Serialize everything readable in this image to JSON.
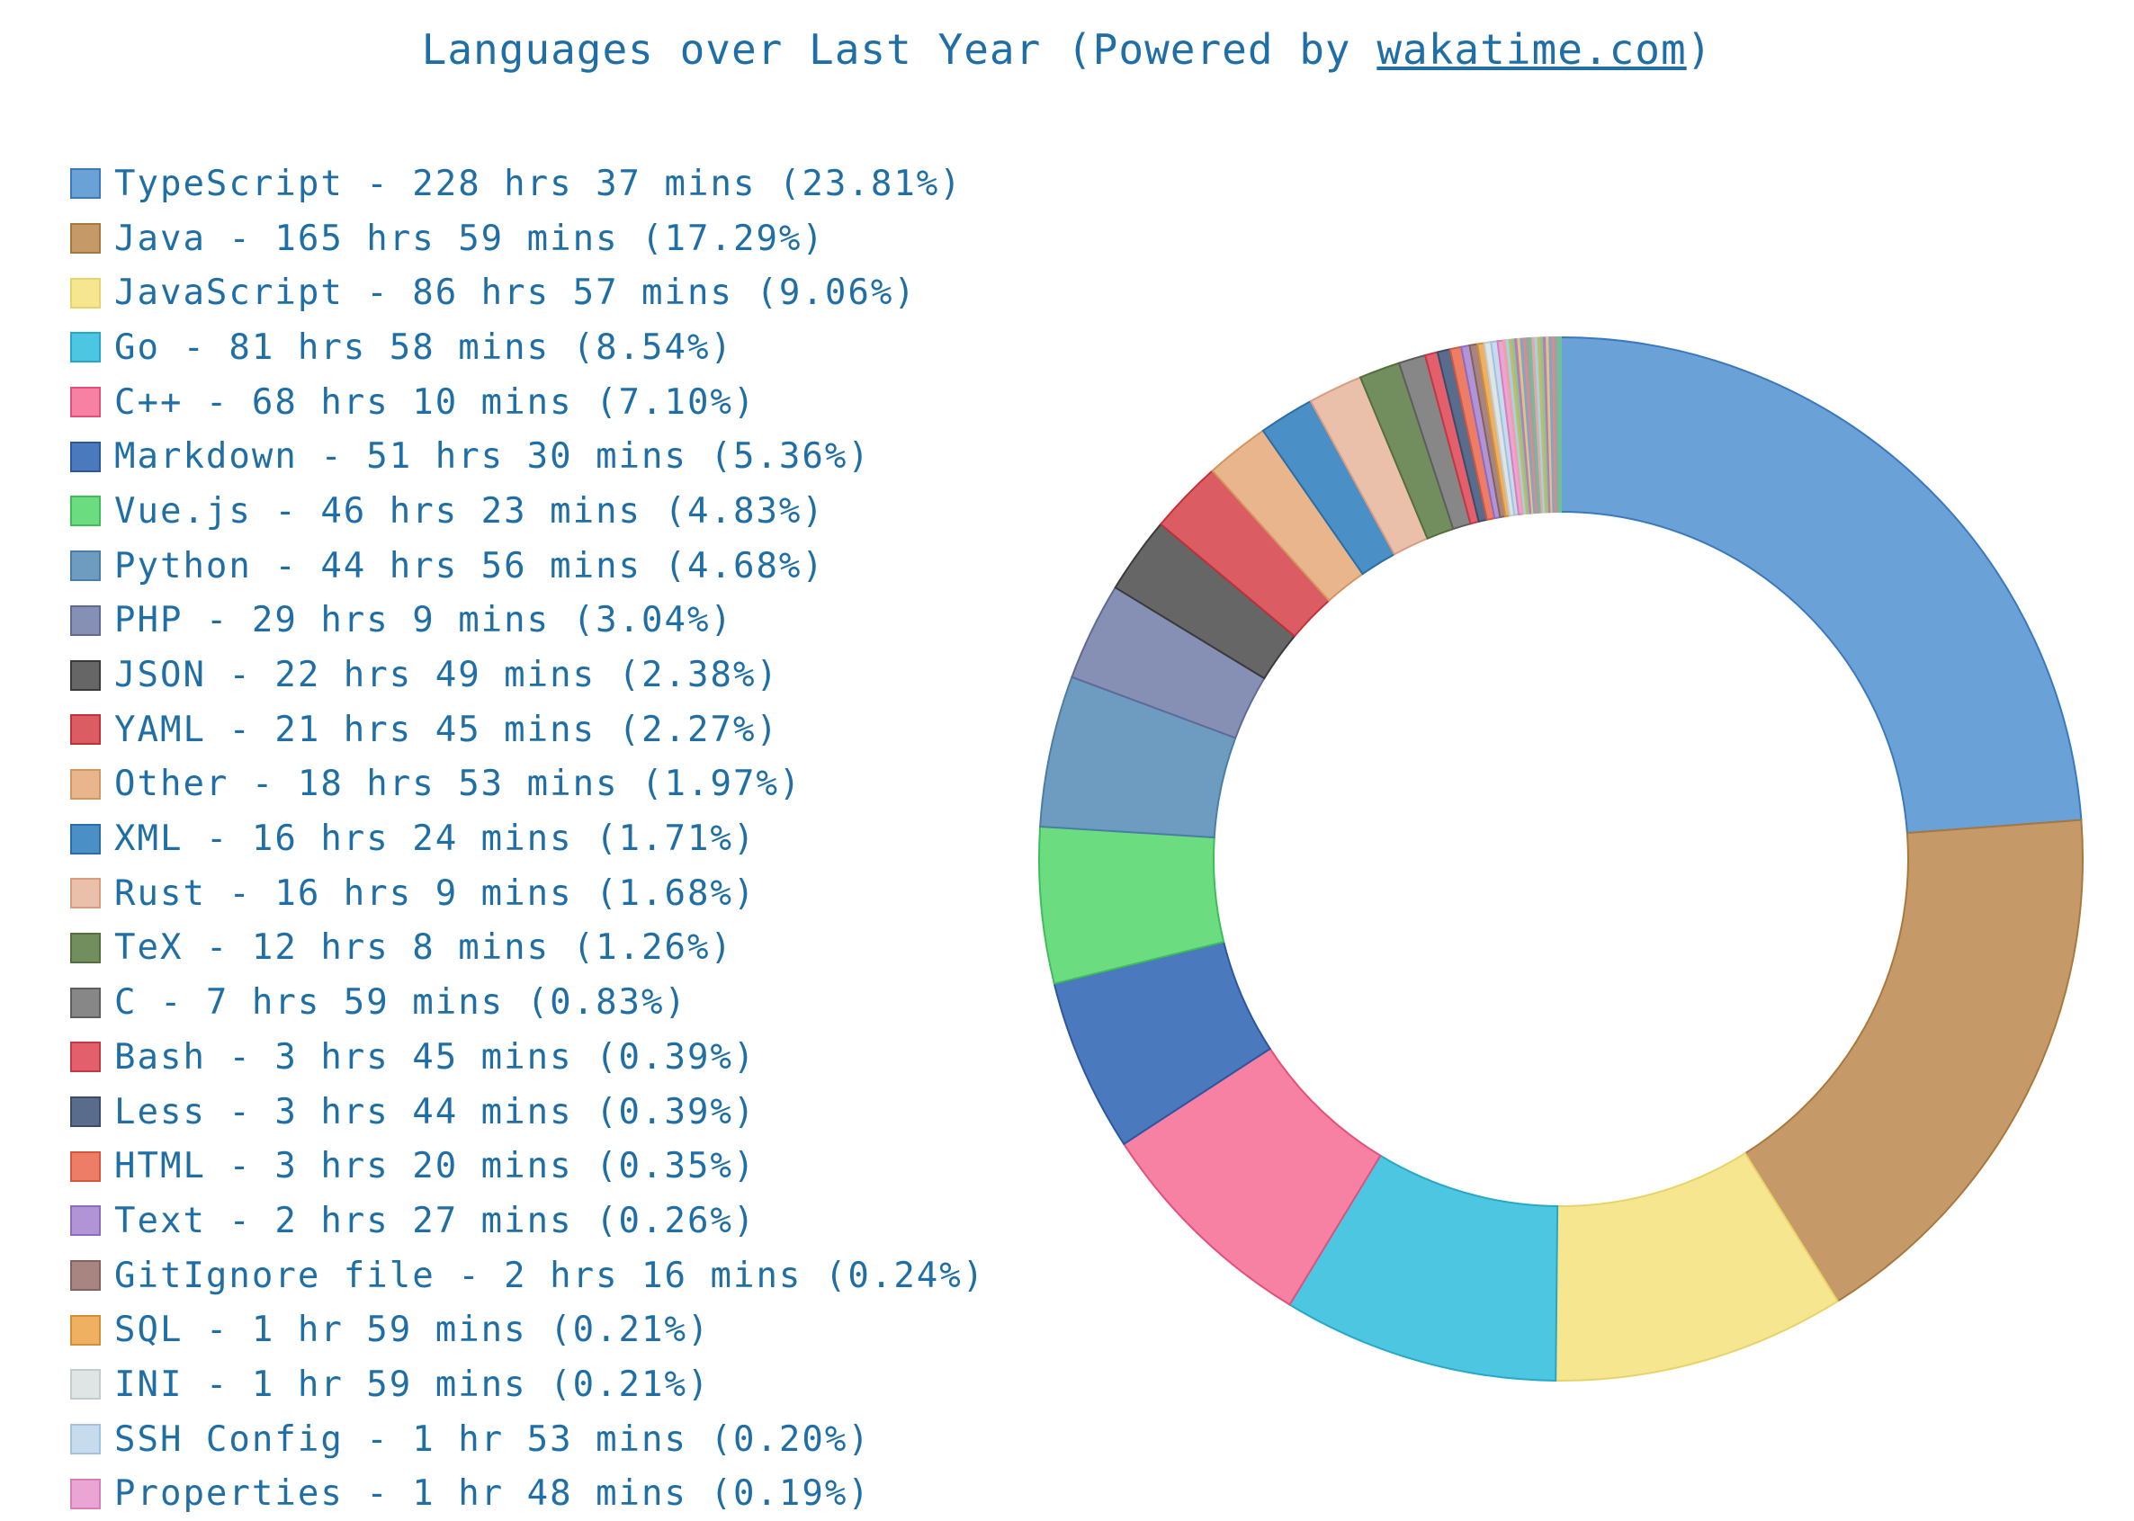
{
  "title_prefix": "Languages over Last Year (Powered by ",
  "title_link": "wakatime.com",
  "title_suffix": ")",
  "chart_data": {
    "type": "pie",
    "title": "Languages over Last Year (Powered by wakatime.com)",
    "unit": "percent",
    "legend_position": "left",
    "series": [
      {
        "name": "TypeScript",
        "label": "TypeScript - 228 hrs 37 mins (23.81%)",
        "value": 23.81,
        "color": "#6aa1d6",
        "stroke": "#3a78bf"
      },
      {
        "name": "Java",
        "label": "Java - 165 hrs 59 mins (17.29%)",
        "value": 17.29,
        "color": "#c69a68",
        "stroke": "#a8783c"
      },
      {
        "name": "JavaScript",
        "label": "JavaScript - 86 hrs 57 mins (9.06%)",
        "value": 9.06,
        "color": "#f5e68f",
        "stroke": "#e8d36a"
      },
      {
        "name": "Go",
        "label": "Go - 81 hrs 58 mins (8.54%)",
        "value": 8.54,
        "color": "#4dc6e1",
        "stroke": "#27a8c8"
      },
      {
        "name": "C++",
        "label": "C++ - 68 hrs 10 mins (7.10%)",
        "value": 7.1,
        "color": "#f681a2",
        "stroke": "#e3507b"
      },
      {
        "name": "Markdown",
        "label": "Markdown - 51 hrs 30 mins (5.36%)",
        "value": 5.36,
        "color": "#4b79bd",
        "stroke": "#2b56a0"
      },
      {
        "name": "Vue.js",
        "label": "Vue.js - 46 hrs 23 mins (4.83%)",
        "value": 4.83,
        "color": "#6cdc81",
        "stroke": "#3fbd5a"
      },
      {
        "name": "Python",
        "label": "Python - 44 hrs 56 mins (4.68%)",
        "value": 4.68,
        "color": "#6e9cc0",
        "stroke": "#4b7ea6"
      },
      {
        "name": "PHP",
        "label": "PHP - 29 hrs 9 mins (3.04%)",
        "value": 3.04,
        "color": "#8590b4",
        "stroke": "#5f6b96"
      },
      {
        "name": "JSON",
        "label": "JSON - 22 hrs 49 mins (2.38%)",
        "value": 2.38,
        "color": "#666666",
        "stroke": "#3a3a3a"
      },
      {
        "name": "YAML",
        "label": "YAML - 21 hrs 45 mins (2.27%)",
        "value": 2.27,
        "color": "#dc5c63",
        "stroke": "#c2313a"
      },
      {
        "name": "Other",
        "label": "Other - 18 hrs 53 mins (1.97%)",
        "value": 1.97,
        "color": "#e8b58c",
        "stroke": "#d4955f"
      },
      {
        "name": "XML",
        "label": "XML - 16 hrs 24 mins (1.71%)",
        "value": 1.71,
        "color": "#4a8fc5",
        "stroke": "#2b6ea6"
      },
      {
        "name": "Rust",
        "label": "Rust - 16 hrs 9 mins (1.68%)",
        "value": 1.68,
        "color": "#ebc0ab",
        "stroke": "#d69d82"
      },
      {
        "name": "TeX",
        "label": "TeX - 12 hrs 8 mins (1.26%)",
        "value": 1.26,
        "color": "#738e5e",
        "stroke": "#52703c"
      },
      {
        "name": "C",
        "label": "C - 7 hrs 59 mins (0.83%)",
        "value": 0.83,
        "color": "#878787",
        "stroke": "#5e5e5e"
      },
      {
        "name": "Bash",
        "label": "Bash - 3 hrs 45 mins (0.39%)",
        "value": 0.39,
        "color": "#e35f6b",
        "stroke": "#c23844"
      },
      {
        "name": "Less",
        "label": "Less - 3 hrs 44 mins (0.39%)",
        "value": 0.39,
        "color": "#596c8c",
        "stroke": "#3b4c6b"
      },
      {
        "name": "HTML",
        "label": "HTML - 3 hrs 20 mins (0.35%)",
        "value": 0.35,
        "color": "#ee7d68",
        "stroke": "#d45740"
      },
      {
        "name": "Text",
        "label": "Text - 2 hrs 27 mins (0.26%)",
        "value": 0.26,
        "color": "#b194d6",
        "stroke": "#8e6bbd"
      },
      {
        "name": "GitIgnore file",
        "label": "GitIgnore file - 2 hrs 16 mins (0.24%)",
        "value": 0.24,
        "color": "#a98581",
        "stroke": "#86625d"
      },
      {
        "name": "SQL",
        "label": "SQL - 1 hr 59 mins (0.21%)",
        "value": 0.21,
        "color": "#efb062",
        "stroke": "#d48f35"
      },
      {
        "name": "INI",
        "label": "INI - 1 hr 59 mins (0.21%)",
        "value": 0.21,
        "color": "#dfe5e5",
        "stroke": "#c2cccc"
      },
      {
        "name": "SSH Config",
        "label": "SSH Config - 1 hr 53 mins (0.20%)",
        "value": 0.2,
        "color": "#c7dbee",
        "stroke": "#a3c2e0"
      },
      {
        "name": "Properties",
        "label": "Properties - 1 hr 48 mins (0.19%)",
        "value": 0.19,
        "color": "#eba5d4",
        "stroke": "#d77fba"
      }
    ],
    "remainder_colors": [
      "#f2a0a0",
      "#9bd7e8",
      "#c9b86a",
      "#8fc48a",
      "#b07fc0",
      "#e6c37a",
      "#7aa7d0",
      "#d98c8c",
      "#a0a0a0",
      "#6fbf9a"
    ]
  }
}
